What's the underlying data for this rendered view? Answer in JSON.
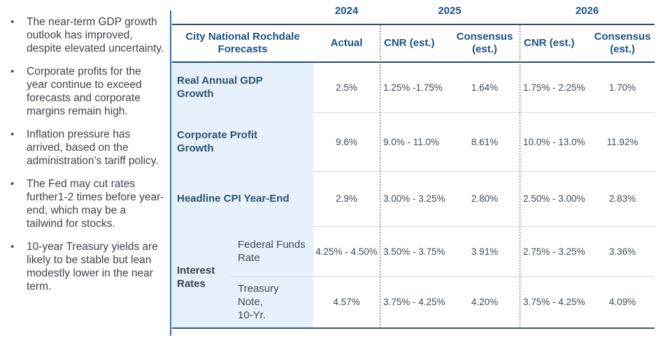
{
  "colors": {
    "header_blue": "#1d5186",
    "row_label_blue": "#2b5370",
    "value_text": "#3e4a55",
    "light_blue_bg": "#e7f1fb",
    "divider_blue": "#2e74b5",
    "rule_navy": "#1f4e79",
    "rule_bottom": "#44546a"
  },
  "bullets": [
    "The near-term GDP growth outlook has improved, despite elevated uncertainty.",
    "Corporate profits for the year continue to exceed forecasts and corporate margins remain high.",
    "Inflation pressure has arrived, based on the administration’s tariff policy.",
    "The Fed may cut rates further1-2 times before year-end, which may be a tailwind for stocks.",
    "10-year Treasury yields are likely to be stable but lean modestly lower in the near term."
  ],
  "table": {
    "title": "City National Rochdale\nForecasts",
    "years": [
      "2024",
      "2025",
      "2026"
    ],
    "col_headers": {
      "actual": "Actual",
      "cnr_2025": "CNR (est.)",
      "consensus_2025": "Consensus\n(est.)",
      "cnr_2026": "CNR (est.)",
      "consensus_2026": "Consensus\n(est.)"
    },
    "interest_group_label": "Interest\nRates",
    "rows": [
      {
        "label": "Real Annual GDP\nGrowth",
        "values": [
          "2.5%",
          "1.25% -1.75%",
          "1.64%",
          "1.75% - 2.25%",
          "1.70%"
        ]
      },
      {
        "label": "Corporate Profit\nGrowth",
        "values": [
          "9.6%",
          "9.0% - 11.0%",
          "8.61%",
          "10.0% - 13.0%",
          "11.92%"
        ]
      },
      {
        "label": "Headline CPI Year-End",
        "values": [
          "2.9%",
          "3.00% - 3.25%",
          "2.80%",
          "2.50% - 3.00%",
          "2.83%"
        ]
      },
      {
        "label": "Federal Funds\nRate",
        "values": [
          "4.25% - 4.50%",
          "3.50% - 3.75%",
          "3.91%",
          "2.75% - 3.25%",
          "3.36%"
        ]
      },
      {
        "label": "Treasury\nNote,\n10-Yr.",
        "values": [
          "4.57%",
          "3.75% - 4.25%",
          "4.20%",
          "3.75% - 4.25%",
          "4.09%"
        ]
      }
    ]
  }
}
